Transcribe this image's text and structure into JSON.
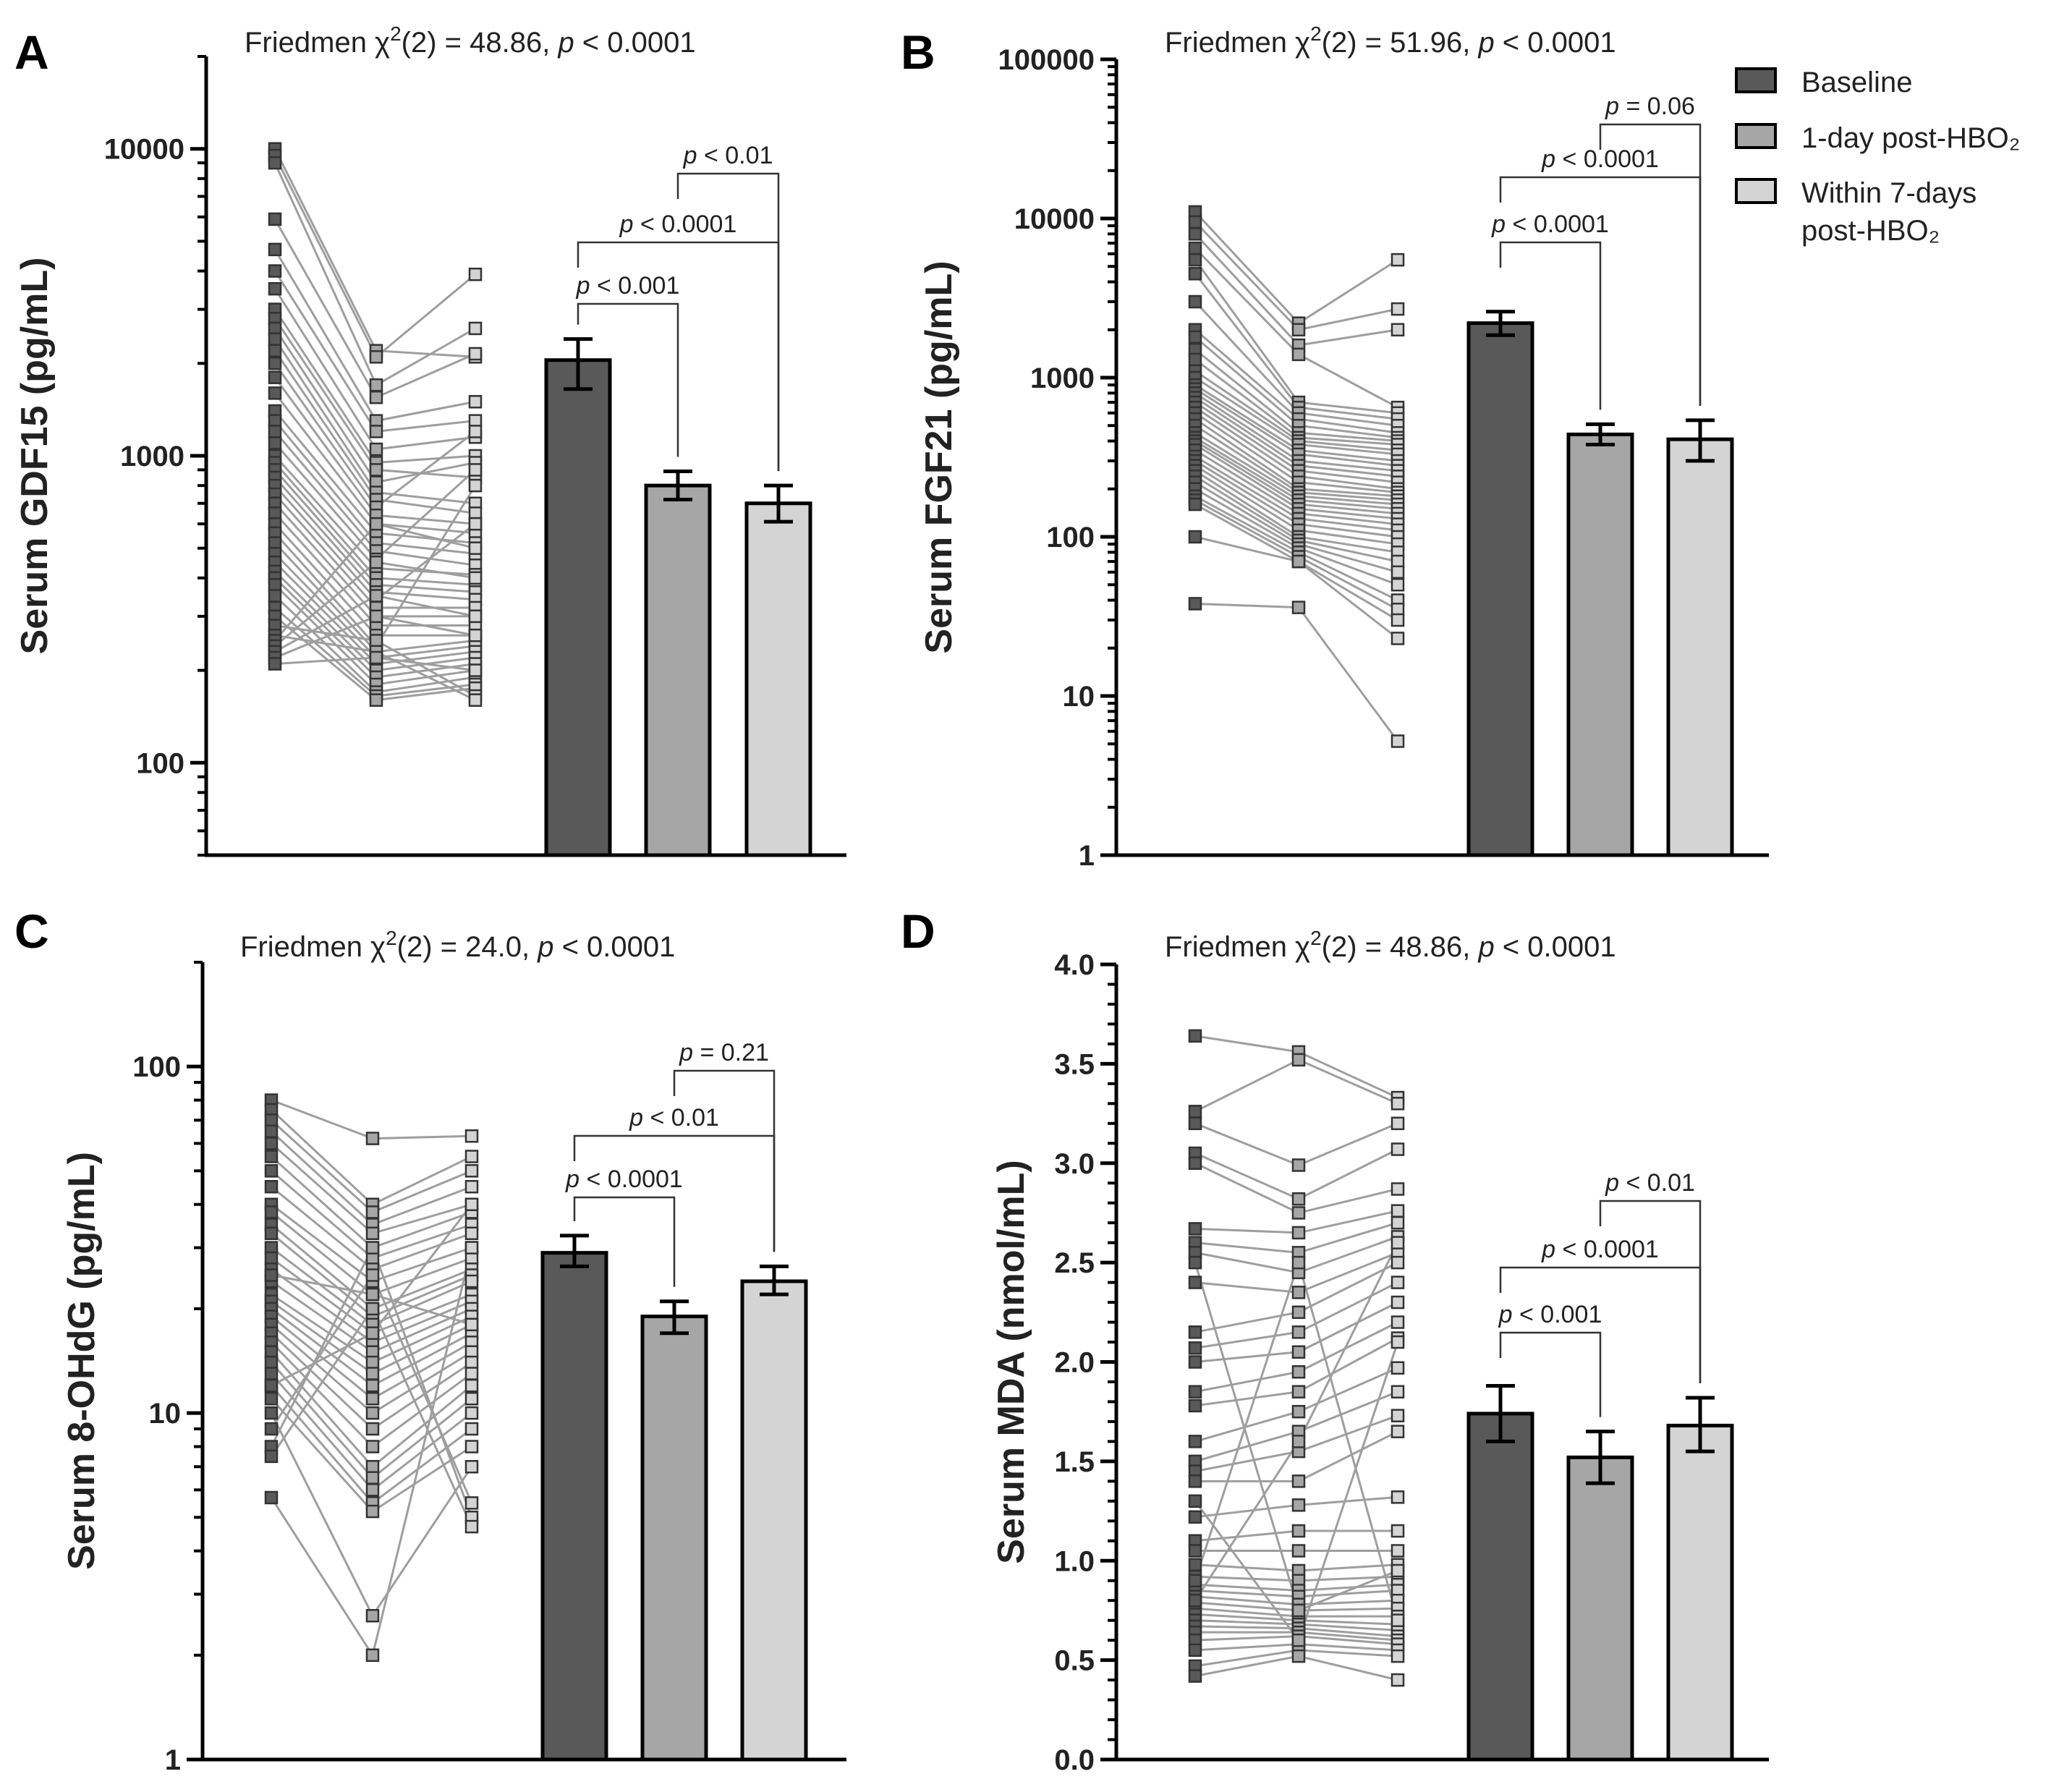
{
  "legend": {
    "colors": [
      "#595959",
      "#a6a6a6",
      "#d4d4d4"
    ],
    "items": [
      {
        "label": "Baseline"
      },
      {
        "label": "1-day post-HBO₂"
      },
      {
        "label": "Within 7-days",
        "label2": "post-HBO₂"
      }
    ]
  },
  "chart_data": [
    {
      "type": "bar",
      "letter": "A",
      "scale": "log",
      "title_prefix": "Friedmen χ",
      "title_sup": "2",
      "title_mid": "(2) = 48.86, ",
      "title_p": "p",
      "title_suffix": " < 0.0001",
      "ylabel": "Serum GDF15 (pg/mL)",
      "ylim": [
        50,
        20000
      ],
      "ticks": [
        100,
        1000,
        10000
      ],
      "tick_labels": [
        "100",
        "1000",
        "10000"
      ],
      "categories": [
        "Baseline",
        "1-day post-HBO₂",
        "Within 7-days post-HBO₂"
      ],
      "values": [
        2050,
        800,
        700
      ],
      "errors": [
        [
          1650,
          2400
        ],
        [
          720,
          890
        ],
        [
          610,
          800
        ]
      ],
      "brackets": [
        {
          "from": 0,
          "to": 1,
          "text_p": "p",
          "text": " < 0.001",
          "level": 0
        },
        {
          "from": 0,
          "to": 2,
          "text_p": "p",
          "text": " < 0.0001",
          "level": 1
        },
        {
          "from": 1,
          "to": 2,
          "text_p": "p",
          "text": " < 0.01",
          "level": 2
        }
      ],
      "subjects": [
        [
          10000,
          2200,
          2100
        ],
        [
          9500,
          2100,
          3900
        ],
        [
          9000,
          1700,
          2600
        ],
        [
          5900,
          1550,
          2150
        ],
        [
          4700,
          1300,
          1500
        ],
        [
          4000,
          1200,
          1300
        ],
        [
          3500,
          1050,
          1150
        ],
        [
          3000,
          950,
          1000
        ],
        [
          2800,
          900,
          850
        ],
        [
          2600,
          820,
          950
        ],
        [
          2400,
          760,
          700
        ],
        [
          2200,
          720,
          650
        ],
        [
          2000,
          680,
          1200
        ],
        [
          1800,
          640,
          600
        ],
        [
          1600,
          600,
          560
        ],
        [
          1400,
          560,
          520
        ],
        [
          1300,
          520,
          480
        ],
        [
          1200,
          490,
          440
        ],
        [
          1100,
          460,
          900
        ],
        [
          1000,
          430,
          410
        ],
        [
          950,
          400,
          380
        ],
        [
          900,
          380,
          360
        ],
        [
          850,
          360,
          340
        ],
        [
          800,
          340,
          600
        ],
        [
          750,
          320,
          320
        ],
        [
          700,
          300,
          300
        ],
        [
          650,
          280,
          280
        ],
        [
          600,
          260,
          260
        ],
        [
          560,
          240,
          800
        ],
        [
          520,
          230,
          250
        ],
        [
          480,
          220,
          240
        ],
        [
          450,
          210,
          230
        ],
        [
          420,
          200,
          220
        ],
        [
          400,
          190,
          210
        ],
        [
          380,
          180,
          200
        ],
        [
          350,
          170,
          190
        ],
        [
          320,
          165,
          180
        ],
        [
          300,
          160,
          175
        ],
        [
          280,
          250,
          165
        ],
        [
          260,
          230,
          160
        ],
        [
          250,
          600,
          500
        ],
        [
          240,
          450,
          400
        ],
        [
          230,
          350,
          300
        ],
        [
          220,
          300,
          260
        ],
        [
          210,
          220,
          200
        ]
      ]
    },
    {
      "type": "bar",
      "letter": "B",
      "scale": "log",
      "title_prefix": "Friedmen χ",
      "title_sup": "2",
      "title_mid": "(2) = 51.96, ",
      "title_p": "p",
      "title_suffix": " < 0.0001",
      "ylabel": "Serum FGF21 (pg/mL)",
      "ylim": [
        1,
        100000
      ],
      "ticks": [
        1,
        10,
        100,
        1000,
        10000,
        100000
      ],
      "tick_labels": [
        "1",
        "10",
        "100",
        "1000",
        "10000",
        "100000"
      ],
      "categories": [
        "Baseline",
        "1-day post-HBO₂",
        "Within 7-days post-HBO₂"
      ],
      "values": [
        2200,
        440,
        410
      ],
      "errors": [
        [
          1850,
          2600
        ],
        [
          380,
          510
        ],
        [
          300,
          540
        ]
      ],
      "brackets": [
        {
          "from": 0,
          "to": 1,
          "text_p": "p",
          "text": " < 0.0001",
          "level": 0
        },
        {
          "from": 0,
          "to": 2,
          "text_p": "p",
          "text": " < 0.0001",
          "level": 1
        },
        {
          "from": 1,
          "to": 2,
          "text_p": "p",
          "text": " = 0.06",
          "level": 2
        }
      ],
      "subjects": [
        [
          11000,
          2200,
          5500
        ],
        [
          9500,
          2000,
          2700
        ],
        [
          8000,
          1600,
          2000
        ],
        [
          6500,
          1400,
          650
        ],
        [
          5500,
          700,
          600
        ],
        [
          4500,
          650,
          550
        ],
        [
          3000,
          600,
          500
        ],
        [
          2000,
          550,
          450
        ],
        [
          1800,
          500,
          420
        ],
        [
          1500,
          450,
          400
        ],
        [
          1300,
          420,
          380
        ],
        [
          1100,
          400,
          350
        ],
        [
          1000,
          380,
          330
        ],
        [
          900,
          350,
          300
        ],
        [
          850,
          330,
          280
        ],
        [
          800,
          300,
          260
        ],
        [
          750,
          280,
          240
        ],
        [
          700,
          260,
          220
        ],
        [
          650,
          240,
          200
        ],
        [
          600,
          220,
          190
        ],
        [
          550,
          200,
          180
        ],
        [
          500,
          190,
          170
        ],
        [
          450,
          180,
          160
        ],
        [
          420,
          170,
          150
        ],
        [
          400,
          160,
          140
        ],
        [
          380,
          150,
          130
        ],
        [
          350,
          140,
          120
        ],
        [
          320,
          130,
          110
        ],
        [
          300,
          120,
          100
        ],
        [
          280,
          110,
          90
        ],
        [
          260,
          100,
          80
        ],
        [
          240,
          95,
          70
        ],
        [
          220,
          90,
          60
        ],
        [
          200,
          85,
          50
        ],
        [
          180,
          80,
          40
        ],
        [
          170,
          75,
          35
        ],
        [
          160,
          70,
          30
        ],
        [
          100,
          70,
          23
        ],
        [
          38,
          36,
          5.2
        ]
      ]
    },
    {
      "type": "bar",
      "letter": "C",
      "scale": "log",
      "title_prefix": "Friedmen χ",
      "title_sup": "2",
      "title_mid": "(2) = 24.0, ",
      "title_p": "p",
      "title_suffix": " < 0.0001",
      "ylabel": "Serum 8-OHdG (pg/mL)",
      "ylim": [
        1,
        200
      ],
      "ticks": [
        1,
        10,
        100
      ],
      "tick_labels": [
        "1",
        "10",
        "100"
      ],
      "categories": [
        "Baseline",
        "1-day post-HBO₂",
        "Within 7-days post-HBO₂"
      ],
      "values": [
        29,
        19,
        24
      ],
      "errors": [
        [
          26.5,
          32.5
        ],
        [
          17,
          21
        ],
        [
          22,
          26.5
        ]
      ],
      "brackets": [
        {
          "from": 0,
          "to": 1,
          "text_p": "p",
          "text": " < 0.0001",
          "level": 0
        },
        {
          "from": 0,
          "to": 2,
          "text_p": "p",
          "text": " < 0.01",
          "level": 1
        },
        {
          "from": 1,
          "to": 2,
          "text_p": "p",
          "text": " = 0.21",
          "level": 2
        }
      ],
      "subjects": [
        [
          80,
          62,
          63
        ],
        [
          75,
          40,
          55
        ],
        [
          70,
          38,
          50
        ],
        [
          65,
          35,
          45
        ],
        [
          60,
          33,
          40
        ],
        [
          55,
          30,
          38
        ],
        [
          50,
          28,
          35
        ],
        [
          45,
          26,
          33
        ],
        [
          40,
          24,
          30
        ],
        [
          38,
          22,
          28
        ],
        [
          35,
          20,
          26
        ],
        [
          33,
          19,
          25
        ],
        [
          30,
          18,
          24
        ],
        [
          28,
          17,
          22
        ],
        [
          26,
          16,
          21
        ],
        [
          24,
          15,
          20
        ],
        [
          22,
          14,
          19
        ],
        [
          21,
          13,
          18
        ],
        [
          20,
          12,
          17
        ],
        [
          19,
          11,
          16
        ],
        [
          18,
          10,
          15
        ],
        [
          17,
          9,
          14
        ],
        [
          16,
          8,
          13
        ],
        [
          15,
          7,
          12
        ],
        [
          14,
          6.5,
          11
        ],
        [
          13,
          6,
          10
        ],
        [
          12,
          5.5,
          9
        ],
        [
          11,
          5.2,
          8
        ],
        [
          10,
          2.6,
          7
        ],
        [
          9,
          25,
          5.5
        ],
        [
          8,
          30,
          5
        ],
        [
          7.5,
          20,
          4.7
        ],
        [
          5.7,
          2,
          30
        ],
        [
          12,
          17,
          40
        ],
        [
          25,
          22,
          18
        ]
      ]
    },
    {
      "type": "bar",
      "letter": "D",
      "scale": "linear",
      "title_prefix": "Friedmen χ",
      "title_sup": "2",
      "title_mid": "(2) = 48.86, ",
      "title_p": "p",
      "title_suffix": " < 0.0001",
      "ylabel": "Serum MDA (nmol/mL)",
      "ylim": [
        0,
        4.0
      ],
      "ticks": [
        0,
        0.5,
        1.0,
        1.5,
        2.0,
        2.5,
        3.0,
        3.5,
        4.0
      ],
      "tick_labels": [
        "0.0",
        "0.5",
        "1.0",
        "1.5",
        "2.0",
        "2.5",
        "3.0",
        "3.5",
        "4.0"
      ],
      "categories": [
        "Baseline",
        "1-day post-HBO₂",
        "Within 7-days post-HBO₂"
      ],
      "values": [
        1.74,
        1.52,
        1.68
      ],
      "errors": [
        [
          1.6,
          1.88
        ],
        [
          1.39,
          1.65
        ],
        [
          1.55,
          1.82
        ]
      ],
      "brackets": [
        {
          "from": 0,
          "to": 1,
          "text_p": "p",
          "text": " < 0.001",
          "level": 0
        },
        {
          "from": 0,
          "to": 2,
          "text_p": "p",
          "text": " < 0.0001",
          "level": 1
        },
        {
          "from": 1,
          "to": 2,
          "text_p": "p",
          "text": " < 0.01",
          "level": 2
        }
      ],
      "subjects": [
        [
          3.64,
          3.56,
          3.33
        ],
        [
          3.26,
          3.52,
          3.3
        ],
        [
          3.2,
          2.99,
          3.2
        ],
        [
          3.05,
          2.82,
          3.07
        ],
        [
          3.0,
          2.75,
          2.87
        ],
        [
          2.67,
          2.65,
          2.76
        ],
        [
          2.6,
          2.55,
          2.7
        ],
        [
          2.55,
          2.45,
          2.63
        ],
        [
          2.4,
          2.35,
          2.55
        ],
        [
          2.15,
          2.25,
          2.5
        ],
        [
          2.07,
          2.15,
          2.4
        ],
        [
          2.0,
          2.05,
          2.3
        ],
        [
          1.85,
          1.95,
          2.2
        ],
        [
          1.78,
          1.85,
          2.12
        ],
        [
          1.6,
          1.75,
          1.97
        ],
        [
          1.5,
          1.65,
          1.85
        ],
        [
          1.45,
          1.55,
          1.73
        ],
        [
          1.4,
          1.4,
          1.65
        ],
        [
          1.22,
          1.28,
          1.32
        ],
        [
          1.1,
          1.15,
          1.15
        ],
        [
          1.05,
          1.05,
          1.05
        ],
        [
          0.98,
          0.95,
          0.98
        ],
        [
          0.92,
          0.9,
          0.92
        ],
        [
          0.88,
          0.85,
          0.88
        ],
        [
          0.85,
          0.82,
          0.85
        ],
        [
          0.82,
          0.78,
          0.8
        ],
        [
          0.79,
          0.75,
          0.76
        ],
        [
          0.76,
          0.72,
          0.72
        ],
        [
          0.73,
          0.7,
          0.68
        ],
        [
          0.7,
          0.68,
          0.65
        ],
        [
          0.67,
          0.66,
          0.62
        ],
        [
          0.64,
          0.64,
          0.6
        ],
        [
          0.6,
          0.62,
          0.58
        ],
        [
          0.55,
          0.58,
          0.55
        ],
        [
          0.47,
          0.55,
          0.52
        ],
        [
          0.42,
          0.52,
          0.4
        ],
        [
          0.8,
          1.6,
          2.6
        ],
        [
          0.9,
          2.5,
          0.7
        ],
        [
          2.5,
          0.75,
          0.95
        ],
        [
          1.3,
          0.6,
          2.1
        ]
      ]
    }
  ]
}
